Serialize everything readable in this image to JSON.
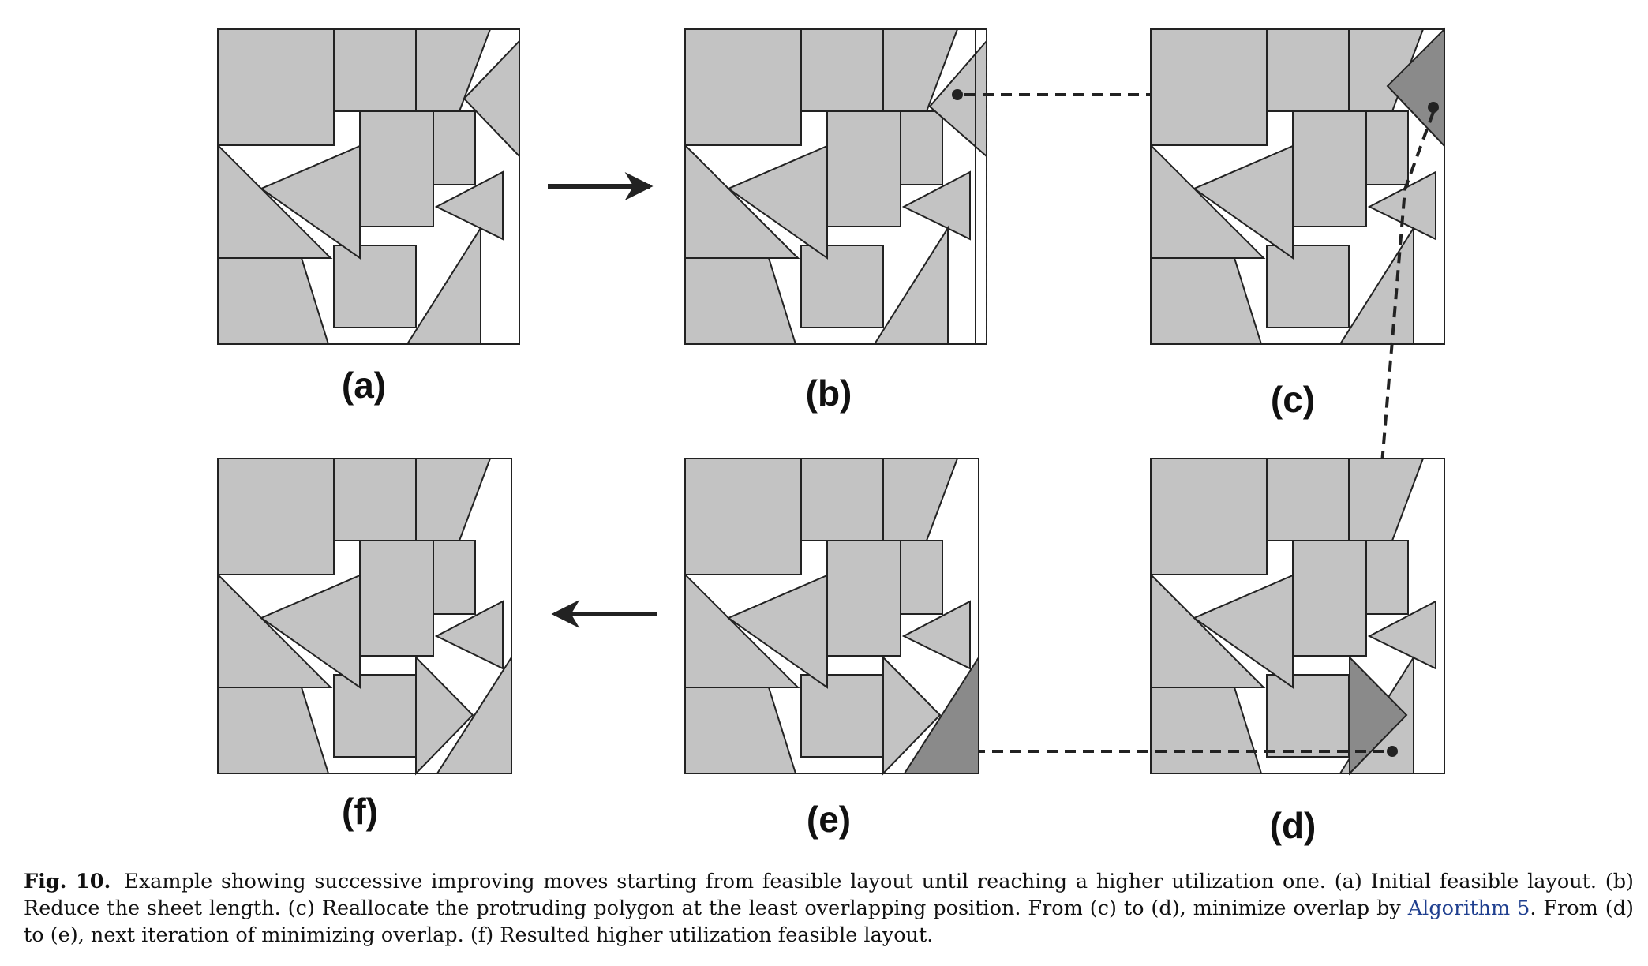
{
  "figure": {
    "panels": [
      {
        "id": "a",
        "label": "(a)"
      },
      {
        "id": "b",
        "label": "(b)"
      },
      {
        "id": "c",
        "label": "(c)"
      },
      {
        "id": "d",
        "label": "(d)"
      },
      {
        "id": "e",
        "label": "(e)"
      },
      {
        "id": "f",
        "label": "(f)"
      }
    ],
    "colors": {
      "piece_fill": "#c3c3c3",
      "highlight_fill": "#8a8a8a",
      "stroke": "#222222",
      "sheet_fill": "#ffffff"
    }
  },
  "caption": {
    "fig_label": "Fig. 10.",
    "text_before_link": "Example showing successive improving moves starting from feasible layout until reaching a higher utilization one. (a) Initial feasible layout. (b) Reduce the sheet length. (c) Reallocate the protruding polygon at the least overlapping position. From (c) to (d), minimize overlap by ",
    "link_text": "Algorithm 5",
    "text_after_link": ". From (d) to (e), next iteration of minimizing overlap. (f) Resulted higher utilization feasible layout."
  }
}
